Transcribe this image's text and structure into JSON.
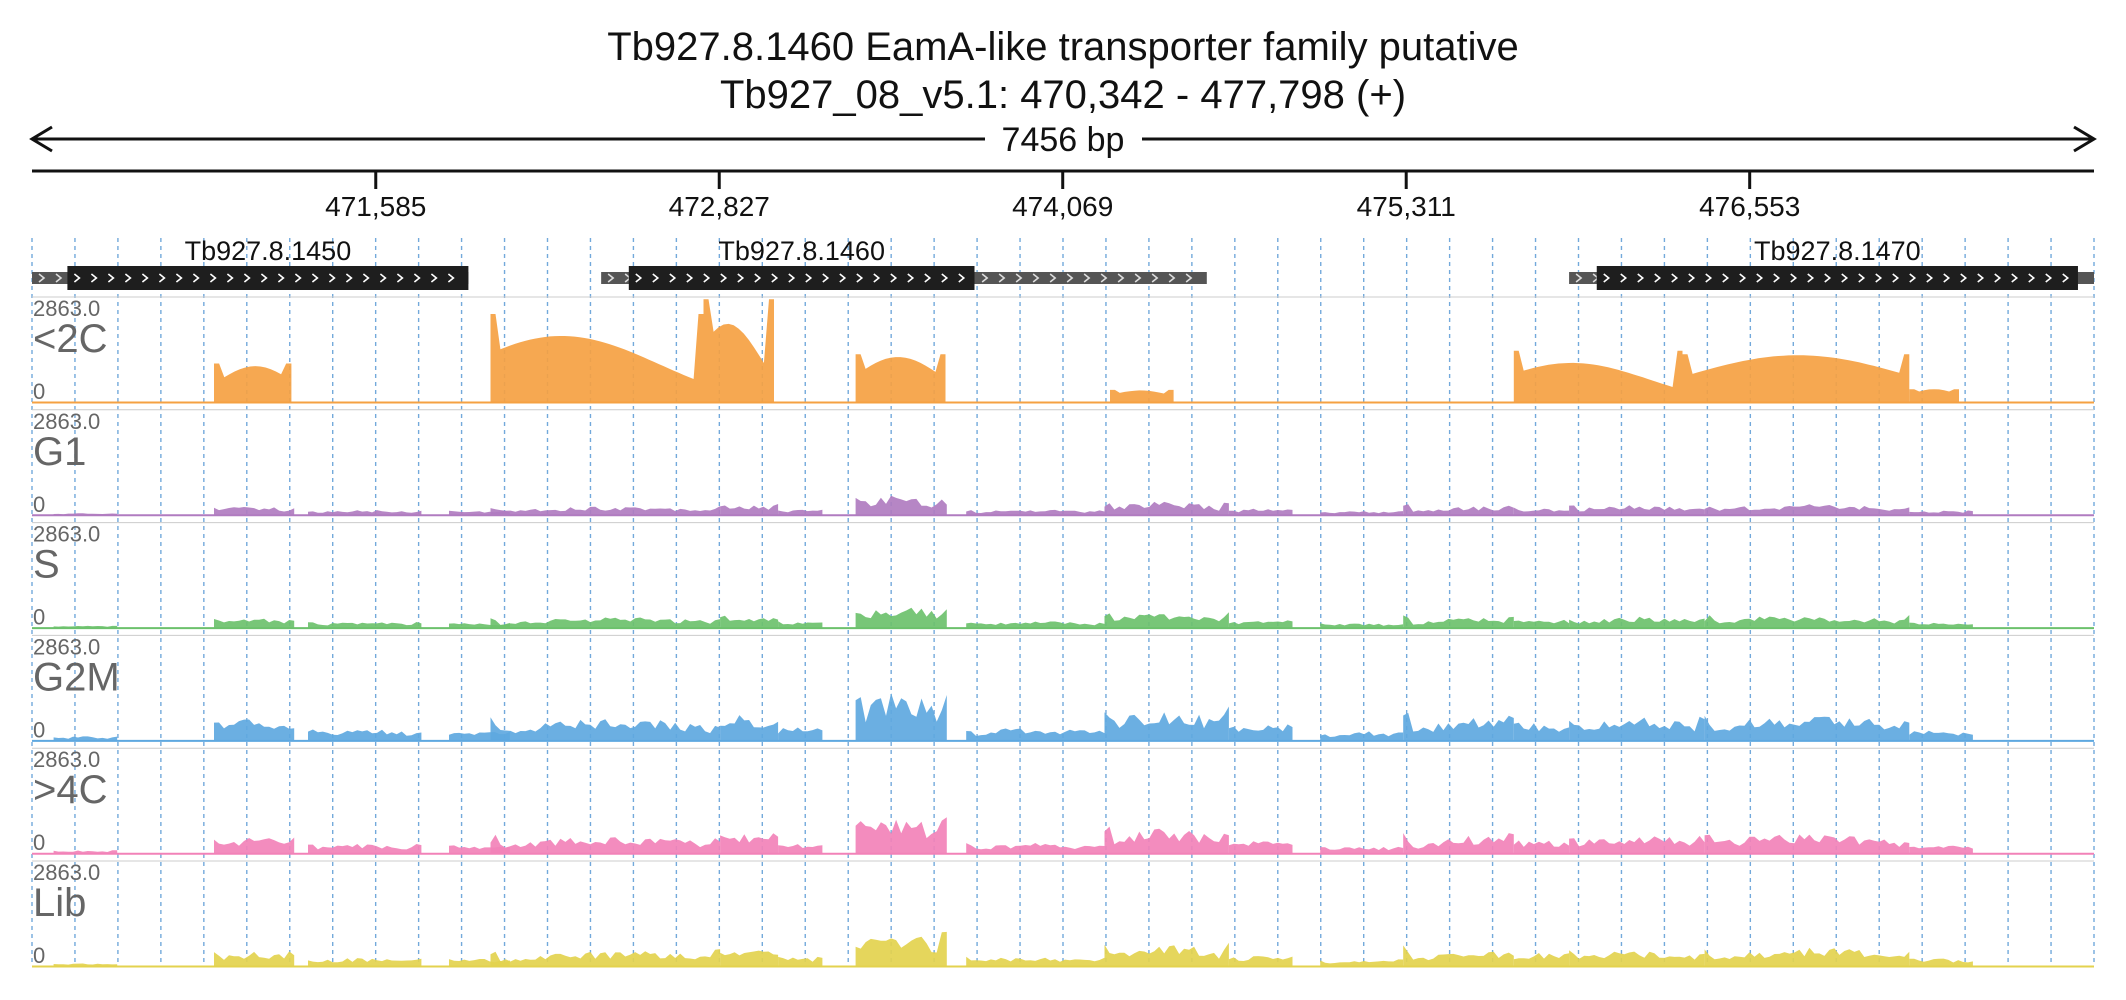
{
  "title_line1": "Tb927.8.1460  EamA-like transporter family  putative",
  "title_line2": "Tb927_08_v5.1: 470,342 - 477,798 (+)",
  "span_label": "7456 bp",
  "colors": {
    "axis": "#111111",
    "grid": "#5b9bd5",
    "gene_cds": "#1e1e1e",
    "gene_utr": "#555555",
    "arrow": "#ffffff"
  },
  "chart_data": {
    "type": "area",
    "xlim": [
      470342,
      477798
    ],
    "ylim": [
      0,
      2863.0
    ],
    "ticks": [
      {
        "value": 471585,
        "label": "471,585"
      },
      {
        "value": 472827,
        "label": "472,827"
      },
      {
        "value": 474069,
        "label": "474,069"
      },
      {
        "value": 475311,
        "label": "475,311"
      },
      {
        "value": 476553,
        "label": "476,553"
      }
    ],
    "genes": [
      {
        "name": "Tb927.8.1450",
        "cds": [
          470470,
          471920
        ],
        "utr": [
          470342,
          471920
        ],
        "strand": "+"
      },
      {
        "name": "Tb927.8.1460",
        "cds": [
          472500,
          473750
        ],
        "utr": [
          472400,
          474590
        ],
        "strand": "+"
      },
      {
        "name": "Tb927.8.1470",
        "cds": [
          476000,
          477740
        ],
        "utr": [
          475900,
          477798
        ],
        "strand": "+"
      }
    ],
    "tracks": [
      {
        "name": "<2C",
        "color": "#f5a142",
        "max_label": "2863.0",
        "zero_label": "0",
        "scale": 1.0
      },
      {
        "name": "G1",
        "color": "#b07cc0",
        "max_label": "2863.0",
        "zero_label": "0",
        "scale": 0.22
      },
      {
        "name": "S",
        "color": "#6cc16c",
        "max_label": "2863.0",
        "zero_label": "0",
        "scale": 0.26
      },
      {
        "name": "G2M",
        "color": "#5ea8e0",
        "max_label": "2863.0",
        "zero_label": "0",
        "scale": 0.55
      },
      {
        "name": ">4C",
        "color": "#f282b8",
        "max_label": "2863.0",
        "zero_label": "0",
        "scale": 0.42
      },
      {
        "name": "Lib",
        "color": "#e3d24e",
        "max_label": "2863.0",
        "zero_label": "0",
        "scale": 0.38
      }
    ],
    "regions_2C": [
      [
        471000,
        471280,
        900,
        1050
      ],
      [
        472000,
        472770,
        2400,
        950
      ],
      [
        472770,
        473025,
        2800,
        1200
      ],
      [
        473320,
        473645,
        1300,
        1150
      ],
      [
        474240,
        474470,
        330,
        300
      ],
      [
        475700,
        476310,
        1400,
        600
      ],
      [
        476310,
        477130,
        1250,
        1300
      ],
      [
        477130,
        477310,
        350,
        350
      ]
    ],
    "regions_other": [
      [
        470420,
        470650,
        150,
        150
      ],
      [
        471000,
        471290,
        800,
        800
      ],
      [
        471340,
        471750,
        450,
        450
      ],
      [
        471850,
        472070,
        400,
        400
      ],
      [
        472000,
        472830,
        700,
        900
      ],
      [
        472830,
        473040,
        1000,
        1000
      ],
      [
        473040,
        473200,
        500,
        500
      ],
      [
        473320,
        473650,
        1900,
        1700
      ],
      [
        473720,
        474220,
        500,
        500
      ],
      [
        474220,
        474670,
        1300,
        1100
      ],
      [
        474670,
        474900,
        600,
        600
      ],
      [
        475000,
        475300,
        350,
        350
      ],
      [
        475300,
        475700,
        500,
        1100
      ],
      [
        475700,
        475900,
        700,
        700
      ],
      [
        475900,
        476390,
        900,
        900
      ],
      [
        476390,
        477130,
        950,
        1000
      ],
      [
        477130,
        477360,
        400,
        400
      ]
    ]
  }
}
